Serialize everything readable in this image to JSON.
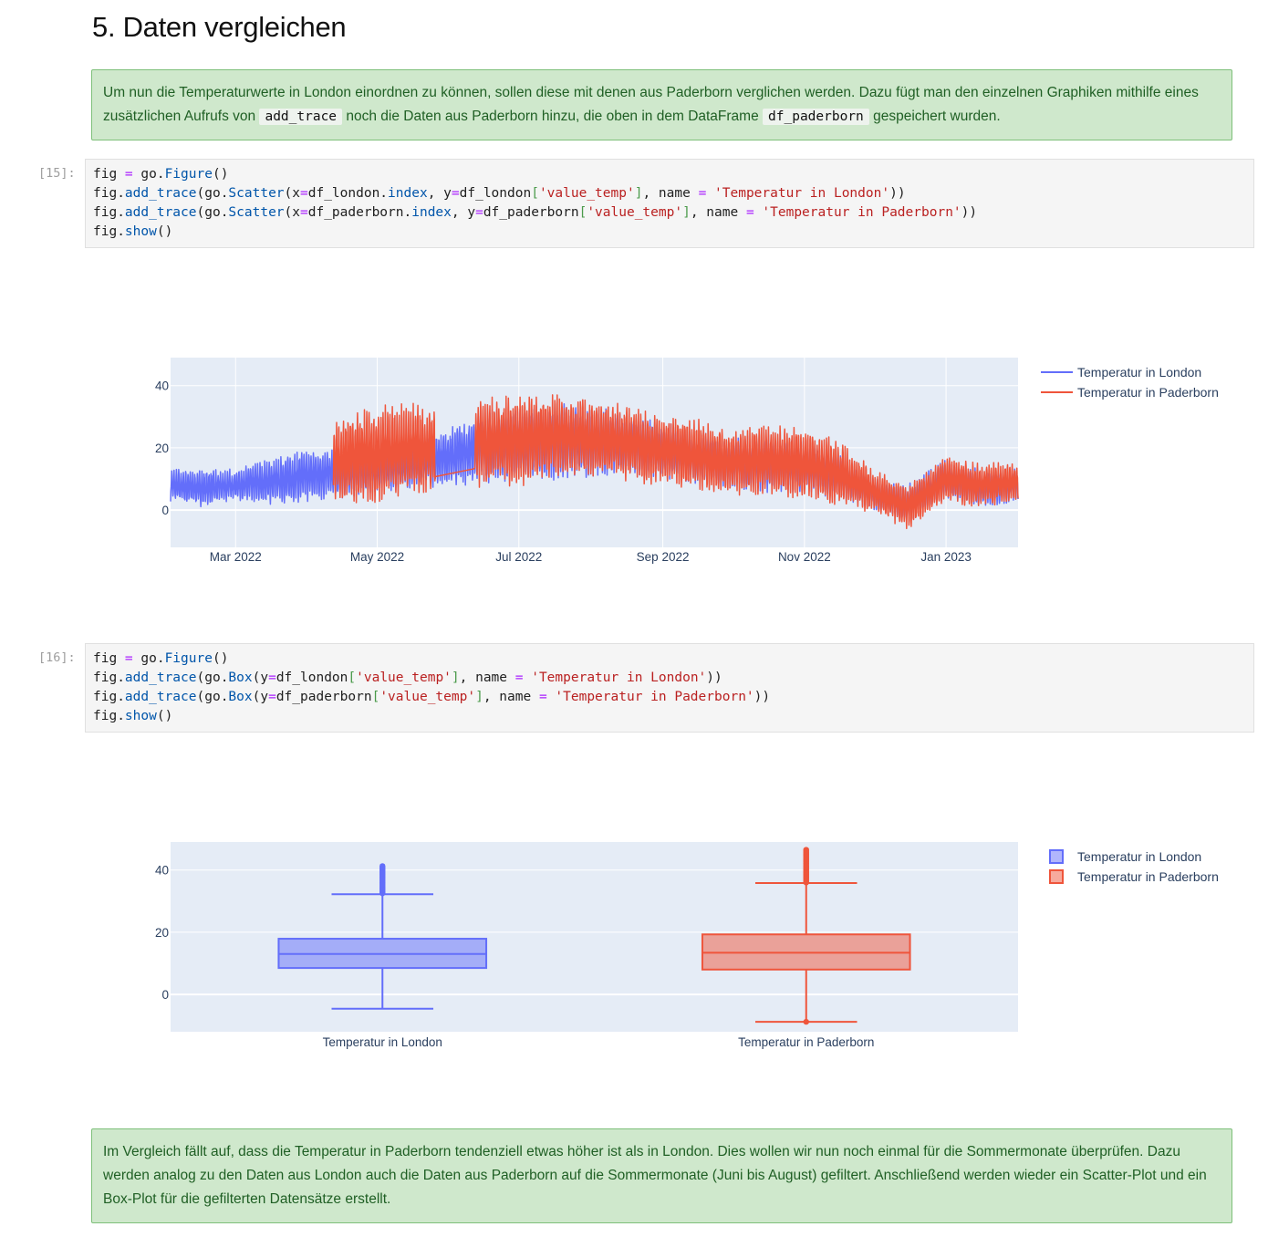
{
  "heading": "5. Daten vergleichen",
  "notes": {
    "intro_part1": "Um nun die Temperaturwerte in London einordnen zu können, sollen diese mit denen aus Paderborn verglichen werden. Dazu fügt man den einzelnen Graphiken mithilfe eines zusätzlichen Aufrufs von ",
    "intro_code1": "add_trace",
    "intro_part2": " noch die Daten aus Paderborn hinzu, die oben in dem DataFrame ",
    "intro_code2": "df_paderborn",
    "intro_part3": " gespeichert wurden.",
    "conclusion": "Im Vergleich fällt auf, dass die Temperatur in Paderborn tendenziell etwas höher ist als in London. Dies wollen wir nun noch einmal für die Sommermonate überprüfen. Dazu werden analog zu den Daten aus London auch die Daten aus Paderborn auf die Sommermonate (Juni bis August) gefiltert. Anschließend werden wieder ein Scatter-Plot und ein Box-Plot für die gefilterten Datensätze erstellt."
  },
  "cells": [
    {
      "prompt": "[15]:",
      "lines": [
        [
          [
            "fig ",
            ""
          ],
          [
            "=",
            "op"
          ],
          [
            " go.",
            ""
          ],
          [
            "Figure",
            "fn"
          ],
          [
            "()",
            ""
          ]
        ],
        [
          [
            "fig.",
            ""
          ],
          [
            "add_trace",
            "fn"
          ],
          [
            "(go.",
            ""
          ],
          [
            "Scatter",
            "fn"
          ],
          [
            "(x",
            ""
          ],
          [
            "=",
            "op"
          ],
          [
            "df_london.",
            ""
          ],
          [
            "index",
            "fn"
          ],
          [
            ", y",
            ""
          ],
          [
            "=",
            "op"
          ],
          [
            "df_london",
            ""
          ],
          [
            "[",
            "br"
          ],
          [
            "'value_temp'",
            "str"
          ],
          [
            "]",
            "br"
          ],
          [
            ", name ",
            ""
          ],
          [
            "=",
            "op"
          ],
          [
            " ",
            ""
          ],
          [
            "'Temperatur in London'",
            "str"
          ],
          [
            "))",
            ""
          ]
        ],
        [
          [
            "fig.",
            ""
          ],
          [
            "add_trace",
            "fn"
          ],
          [
            "(go.",
            ""
          ],
          [
            "Scatter",
            "fn"
          ],
          [
            "(x",
            ""
          ],
          [
            "=",
            "op"
          ],
          [
            "df_paderborn.",
            ""
          ],
          [
            "index",
            "fn"
          ],
          [
            ", y",
            ""
          ],
          [
            "=",
            "op"
          ],
          [
            "df_paderborn",
            ""
          ],
          [
            "[",
            "br"
          ],
          [
            "'value_temp'",
            "str"
          ],
          [
            "]",
            "br"
          ],
          [
            ", name ",
            ""
          ],
          [
            "=",
            "op"
          ],
          [
            " ",
            ""
          ],
          [
            "'Temperatur in Paderborn'",
            "str"
          ],
          [
            "))",
            ""
          ]
        ],
        [
          [
            "fig.",
            ""
          ],
          [
            "show",
            "fn"
          ],
          [
            "()",
            ""
          ]
        ]
      ]
    },
    {
      "prompt": "[16]:",
      "lines": [
        [
          [
            "fig ",
            ""
          ],
          [
            "=",
            "op"
          ],
          [
            " go.",
            ""
          ],
          [
            "Figure",
            "fn"
          ],
          [
            "()",
            ""
          ]
        ],
        [
          [
            "fig.",
            ""
          ],
          [
            "add_trace",
            "fn"
          ],
          [
            "(go.",
            ""
          ],
          [
            "Box",
            "fn"
          ],
          [
            "(y",
            ""
          ],
          [
            "=",
            "op"
          ],
          [
            "df_london",
            ""
          ],
          [
            "[",
            "br"
          ],
          [
            "'value_temp'",
            "str"
          ],
          [
            "]",
            "br"
          ],
          [
            ", name ",
            ""
          ],
          [
            "=",
            "op"
          ],
          [
            " ",
            ""
          ],
          [
            "'Temperatur in London'",
            "str"
          ],
          [
            "))",
            ""
          ]
        ],
        [
          [
            "fig.",
            ""
          ],
          [
            "add_trace",
            "fn"
          ],
          [
            "(go.",
            ""
          ],
          [
            "Box",
            "fn"
          ],
          [
            "(y",
            ""
          ],
          [
            "=",
            "op"
          ],
          [
            "df_paderborn",
            ""
          ],
          [
            "[",
            "br"
          ],
          [
            "'value_temp'",
            "str"
          ],
          [
            "]",
            "br"
          ],
          [
            ", name ",
            ""
          ],
          [
            "=",
            "op"
          ],
          [
            " ",
            ""
          ],
          [
            "'Temperatur in Paderborn'",
            "str"
          ],
          [
            "))",
            ""
          ]
        ],
        [
          [
            "fig.",
            ""
          ],
          [
            "show",
            "fn"
          ],
          [
            "()",
            ""
          ]
        ]
      ]
    }
  ],
  "colors": {
    "london": "#636efa",
    "paderborn": "#ef553b",
    "plot_bg": "#e5ecf6",
    "note_bg": "#cfe8cc"
  },
  "chart_data": [
    {
      "type": "line",
      "title": "",
      "xlabel": "",
      "ylabel": "",
      "x_ticks": [
        "Mar 2022",
        "May 2022",
        "Jul 2022",
        "Sep 2022",
        "Nov 2022",
        "Jan 2023"
      ],
      "y_ticks": [
        0,
        20,
        40
      ],
      "xlim": [
        "2022-02-01",
        "2023-02-01"
      ],
      "ylim": [
        -12,
        49
      ],
      "grid": true,
      "legend": "top-right",
      "series": [
        {
          "name": "Temperatur in London",
          "x": [
            "2022-02-01",
            "2022-02-15",
            "2022-03-01",
            "2022-03-15",
            "2022-04-01",
            "2022-04-15",
            "2022-05-01",
            "2022-05-15",
            "2022-06-01",
            "2022-06-15",
            "2022-07-01",
            "2022-07-15",
            "2022-08-01",
            "2022-08-15",
            "2022-09-01",
            "2022-09-15",
            "2022-10-01",
            "2022-10-15",
            "2022-11-01",
            "2022-11-15",
            "2022-12-01",
            "2022-12-15",
            "2023-01-01",
            "2023-01-15",
            "2023-02-01"
          ],
          "y_mid": [
            8,
            7,
            8,
            9,
            11,
            12,
            13,
            15,
            17,
            20,
            21,
            22,
            22,
            21,
            19,
            17,
            15,
            15,
            14,
            11,
            5,
            2,
            10,
            7,
            8
          ],
          "y_amp": [
            5,
            6,
            5,
            7,
            8,
            8,
            7,
            8,
            9,
            11,
            12,
            12,
            11,
            10,
            9,
            8,
            8,
            9,
            8,
            7,
            5,
            6,
            6,
            6,
            5
          ]
        },
        {
          "name": "Temperatur in Paderborn",
          "x": [
            "2022-04-12",
            "2022-05-01",
            "2022-05-15",
            "2022-06-01",
            "2022-06-15",
            "2022-07-01",
            "2022-07-15",
            "2022-08-01",
            "2022-08-15",
            "2022-09-01",
            "2022-09-15",
            "2022-10-01",
            "2022-10-15",
            "2022-11-01",
            "2022-11-15",
            "2022-12-01",
            "2022-12-15",
            "2023-01-01",
            "2023-01-15",
            "2023-02-01"
          ],
          "y_mid": [
            16,
            18,
            20,
            19,
            22,
            22,
            24,
            23,
            22,
            19,
            18,
            15,
            16,
            15,
            12,
            6,
            1,
            10,
            8,
            9
          ],
          "y_amp": [
            14,
            15,
            14,
            12,
            14,
            14,
            13,
            12,
            12,
            11,
            11,
            10,
            11,
            11,
            10,
            7,
            7,
            7,
            7,
            6
          ],
          "gap": [
            "2022-05-26",
            "2022-06-12"
          ]
        }
      ]
    },
    {
      "type": "box",
      "title": "",
      "xlabel": "",
      "ylabel": "",
      "categories": [
        "Temperatur in London",
        "Temperatur in Paderborn"
      ],
      "y_ticks": [
        0,
        20,
        40
      ],
      "ylim": [
        -12,
        49
      ],
      "grid": true,
      "legend": "top-right",
      "series": [
        {
          "name": "Temperatur in London",
          "min": -4.6,
          "q1": 8.5,
          "median": 13.0,
          "q3": 17.9,
          "max": 32.2,
          "outliers_range": [
            32.5,
            41.3
          ]
        },
        {
          "name": "Temperatur in Paderborn",
          "min": -8.8,
          "q1": 8.0,
          "median": 13.4,
          "q3": 19.3,
          "max": 35.8,
          "outliers_range": [
            36.0,
            46.8
          ]
        }
      ]
    }
  ]
}
